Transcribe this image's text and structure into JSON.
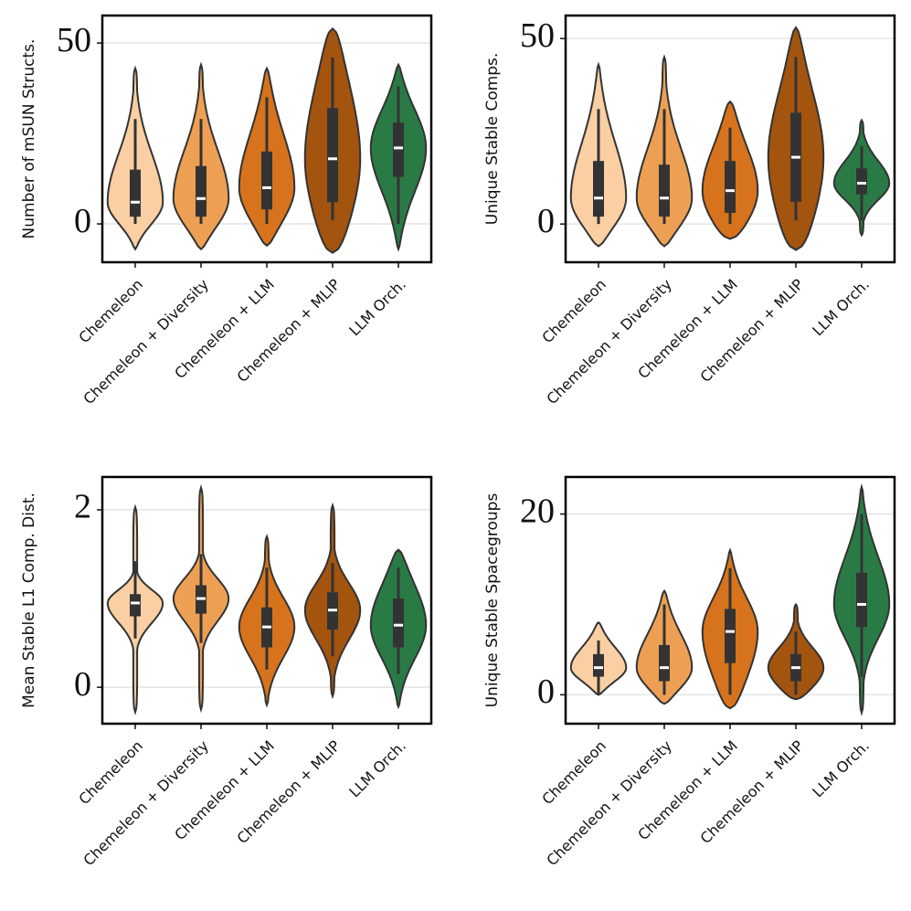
{
  "chart_data": [
    {
      "type": "violin",
      "ylabel": "Number of mSUN Structs.",
      "categories": [
        "Chemeleon",
        "Chemeleon + Diversity",
        "Chemeleon + LLM",
        "Chemeleon + MLIP",
        "LLM Orch."
      ],
      "colors": [
        "#f9cfa3",
        "#eda054",
        "#d6731c",
        "#a3540f",
        "#2a7a45"
      ],
      "violin_min": [
        -7,
        -7,
        -6,
        -8,
        -7
      ],
      "whisker_low": [
        0,
        0,
        0,
        1,
        0
      ],
      "q1": [
        2,
        2,
        4,
        6,
        13
      ],
      "median": [
        6,
        7,
        10,
        18,
        21
      ],
      "q3": [
        15,
        16,
        20,
        32,
        28
      ],
      "whisker_high": [
        29,
        29,
        35,
        46,
        38
      ],
      "violin_max": [
        43,
        44,
        43,
        54,
        44
      ],
      "ylim": [
        -10.6,
        57.6
      ],
      "yticks": [
        0,
        50
      ],
      "grid": true
    },
    {
      "type": "violin",
      "ylabel": "Unique Stable Comps.",
      "categories": [
        "Chemeleon",
        "Chemeleon + Diversity",
        "Chemeleon + LLM",
        "Chemeleon + MLIP",
        "LLM Orch."
      ],
      "colors": [
        "#f9cfa3",
        "#eda054",
        "#d6731c",
        "#a3540f",
        "#2a7a45"
      ],
      "violin_min": [
        -6,
        -6,
        -4,
        -7,
        -3
      ],
      "whisker_low": [
        0,
        0,
        0,
        1,
        1
      ],
      "q1": [
        2,
        2,
        3,
        6,
        8
      ],
      "median": [
        7,
        7,
        9,
        18,
        11
      ],
      "q3": [
        17,
        16,
        17,
        30,
        15
      ],
      "whisker_high": [
        31,
        31,
        26,
        45,
        21
      ],
      "violin_max": [
        43,
        45,
        33,
        53,
        28
      ],
      "ylim": [
        -10.3,
        56.2
      ],
      "yticks": [
        0,
        50
      ],
      "grid": true
    },
    {
      "type": "violin",
      "ylabel": "Mean Stable L1 Comp. Dist.",
      "categories": [
        "Chemeleon",
        "Chemeleon + Diversity",
        "Chemeleon + LLM",
        "Chemeleon + MLIP",
        "LLM Orch."
      ],
      "colors": [
        "#f9cfa3",
        "#eda054",
        "#d6731c",
        "#a3540f",
        "#2a7a45"
      ],
      "violin_min": [
        -0.28,
        -0.25,
        -0.2,
        -0.1,
        -0.22
      ],
      "whisker_low": [
        0.55,
        0.5,
        0.2,
        0.35,
        0.15
      ],
      "q1": [
        0.8,
        0.83,
        0.45,
        0.65,
        0.45
      ],
      "median": [
        0.95,
        1.0,
        0.68,
        0.87,
        0.7
      ],
      "q3": [
        1.05,
        1.15,
        0.9,
        1.07,
        1.0
      ],
      "whisker_high": [
        1.42,
        1.5,
        1.35,
        1.4,
        1.35
      ],
      "violin_max": [
        2.03,
        2.25,
        1.7,
        2.05,
        1.55
      ],
      "ylim": [
        -0.41,
        2.37
      ],
      "yticks": [
        0,
        2
      ],
      "grid": true
    },
    {
      "type": "violin",
      "ylabel": "Unique Stable Spacegroups",
      "categories": [
        "Chemeleon",
        "Chemeleon + Diversity",
        "Chemeleon + LLM",
        "Chemeleon + MLIP",
        "LLM Orch."
      ],
      "colors": [
        "#f9cfa3",
        "#eda054",
        "#d6731c",
        "#a3540f",
        "#2a7a45"
      ],
      "violin_min": [
        0,
        -1,
        -1.5,
        -0.5,
        -2
      ],
      "whisker_low": [
        0,
        0,
        0,
        0,
        2
      ],
      "q1": [
        2,
        1.5,
        3.5,
        1.5,
        7.5
      ],
      "median": [
        3,
        3,
        7,
        3,
        10
      ],
      "q3": [
        4.5,
        5.5,
        9.5,
        4.5,
        13.5
      ],
      "whisker_high": [
        6,
        10,
        14,
        7,
        20
      ],
      "violin_max": [
        8,
        11.5,
        16,
        10,
        23
      ],
      "ylim": [
        -3.2,
        24.1
      ],
      "yticks": [
        0,
        20
      ],
      "grid": true
    }
  ]
}
